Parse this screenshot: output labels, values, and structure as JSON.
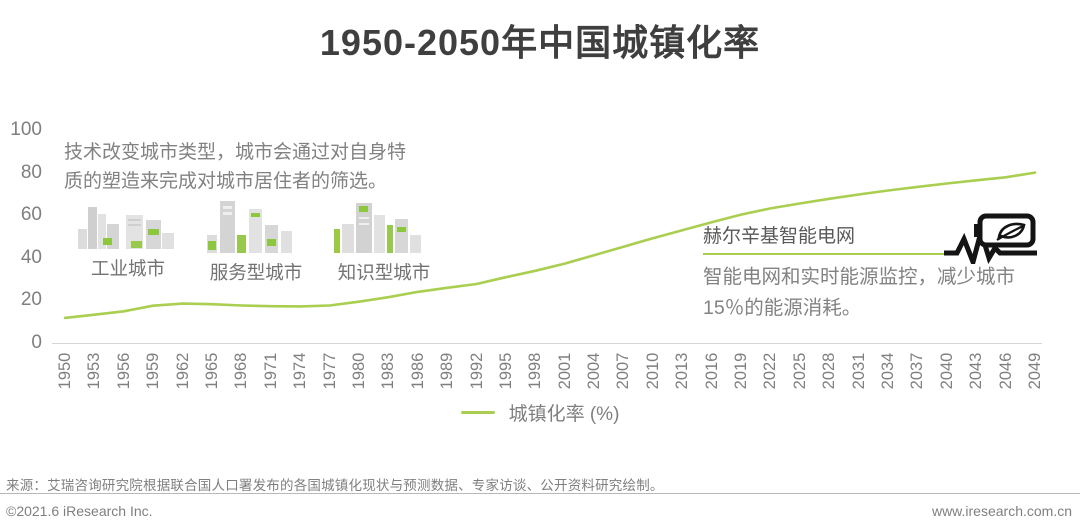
{
  "title": "1950-2050年中国城镇化率",
  "annotation_left": {
    "lines": [
      "技术改变城市类型，城市会通过对自身特",
      "质的塑造来完成对城市居住者的筛选。"
    ],
    "cities": [
      {
        "label": "工业城市"
      },
      {
        "label": "服务型城市"
      },
      {
        "label": "知识型城市"
      }
    ]
  },
  "annotation_right": {
    "heading": "赫尔辛基智能电网",
    "body_lines": [
      "智能电网和实时能源监控，减少城市",
      "15％的能源消耗。"
    ]
  },
  "legend": {
    "label": "城镇化率 (%)"
  },
  "footer": {
    "source": "来源：艾瑞咨询研究院根据联合国人口署发布的各国城镇化现状与预测数据、专家访谈、公开资料研究绘制。",
    "copyright": "©2021.6 iResearch Inc.",
    "website": "www.iresearch.com.cn"
  },
  "icons": {
    "industrial_city": "industrial-city-icon",
    "service_city": "service-city-icon",
    "knowledge_city": "knowledge-city-icon",
    "eco_battery": "eco-battery-pulse-icon"
  },
  "colors": {
    "line_green": "#a9ce50",
    "accent_green": "#8dc63f",
    "building_gray": "#d9d9d9",
    "title_gray": "#3f3f3f",
    "text_gray": "#828282",
    "axis_gray": "#7f7f7f",
    "icon_black": "#141414"
  },
  "chart_data": {
    "type": "line",
    "title": "1950-2050年中国城镇化率",
    "x": [
      1950,
      1953,
      1956,
      1959,
      1962,
      1965,
      1968,
      1971,
      1974,
      1977,
      1980,
      1983,
      1986,
      1989,
      1992,
      1995,
      1998,
      2001,
      2004,
      2007,
      2010,
      2013,
      2016,
      2019,
      2022,
      2025,
      2028,
      2031,
      2034,
      2037,
      2040,
      2043,
      2046,
      2049
    ],
    "series": [
      {
        "name": "城镇化率 (%)",
        "values": [
          11.8,
          13.3,
          14.9,
          17.5,
          18.5,
          18.2,
          17.6,
          17.3,
          17.2,
          17.6,
          19.4,
          21.5,
          24.0,
          25.9,
          27.7,
          30.9,
          33.9,
          37.3,
          41.2,
          45.2,
          49.2,
          52.9,
          56.7,
          60.3,
          63.2,
          65.5,
          67.7,
          69.7,
          71.6,
          73.3,
          74.9,
          76.4,
          77.8,
          80.0
        ]
      }
    ],
    "xlabel": "",
    "ylabel": "",
    "ylim": [
      0,
      100
    ],
    "yticks": [
      0,
      20,
      40,
      60,
      80,
      100
    ],
    "grid": false,
    "legend_position": "bottom"
  }
}
